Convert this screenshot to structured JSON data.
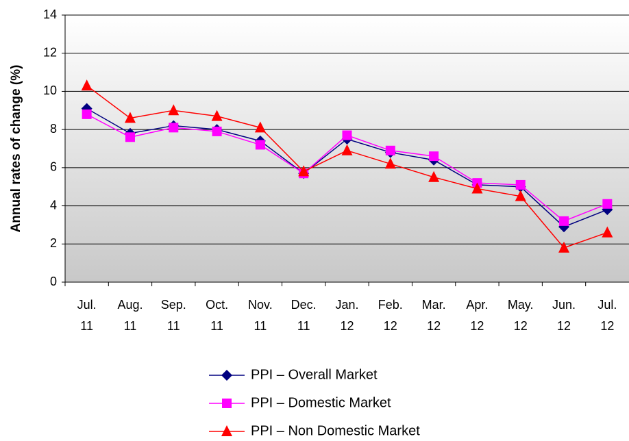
{
  "chart_data": {
    "type": "line",
    "y_label": "Annual rates of change (%)",
    "categories": [
      "Jul. 11",
      "Aug. 11",
      "Sep. 11",
      "Oct. 11",
      "Nov. 11",
      "Dec. 11",
      "Jan. 12",
      "Feb. 12",
      "Mar. 12",
      "Apr. 12",
      "May. 12",
      "Jun. 12",
      "Jul. 12"
    ],
    "series": [
      {
        "name": "PPI – Overall Market",
        "color": "#000080",
        "marker": "diamond",
        "values": [
          9.1,
          7.8,
          8.2,
          8.0,
          7.4,
          5.7,
          7.5,
          6.8,
          6.4,
          5.1,
          5.0,
          2.9,
          3.8
        ]
      },
      {
        "name": "PPI – Domestic Market",
        "color": "#ff00ff",
        "marker": "square",
        "values": [
          8.8,
          7.6,
          8.1,
          7.9,
          7.2,
          5.7,
          7.7,
          6.9,
          6.6,
          5.2,
          5.1,
          3.2,
          4.1
        ]
      },
      {
        "name": "PPI – Non Domestic Market",
        "color": "#ff0000",
        "marker": "triangle",
        "values": [
          10.3,
          8.6,
          9.0,
          8.7,
          8.1,
          5.8,
          6.9,
          6.2,
          5.5,
          4.9,
          4.5,
          1.8,
          2.6
        ]
      }
    ],
    "ylim": [
      0,
      14
    ],
    "yticks": [
      0,
      2,
      4,
      6,
      8,
      10,
      12,
      14
    ],
    "grid": true,
    "legend": "bottom"
  }
}
